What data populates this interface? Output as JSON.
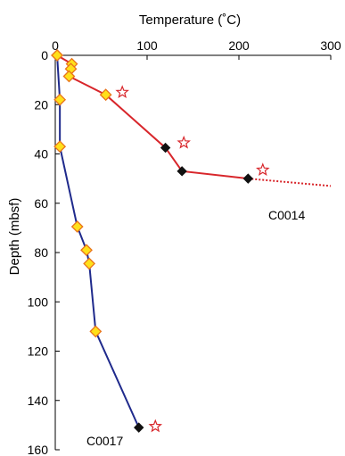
{
  "chart_data": {
    "type": "line",
    "title": "",
    "xlabel": "Temperature (˚C)",
    "ylabel": "Depth (mbsf)",
    "x_axis_position": "top",
    "y_axis_inverted": true,
    "xlim": [
      0,
      300
    ],
    "ylim": [
      0,
      160
    ],
    "xticks": [
      0,
      100,
      200,
      300
    ],
    "yticks": [
      0,
      20,
      40,
      60,
      80,
      100,
      120,
      140,
      160
    ],
    "grid": false,
    "legend": "none",
    "colors": {
      "C0014": "#d8262b",
      "C0017": "#1f2a8c",
      "marker_fill": "#ffe01a",
      "marker_edge": "#e8731a",
      "black_marker": "#111111",
      "star": "#d8262b"
    },
    "series": [
      {
        "name": "C0014",
        "points": [
          {
            "x": 2,
            "y": 0,
            "marker": "yellow-diamond"
          },
          {
            "x": 18,
            "y": 3.5,
            "marker": "yellow-diamond"
          },
          {
            "x": 17,
            "y": 5.5,
            "marker": "yellow-diamond"
          },
          {
            "x": 15,
            "y": 8.5,
            "marker": "yellow-diamond"
          },
          {
            "x": 55,
            "y": 16,
            "marker": "yellow-diamond"
          },
          {
            "x": 120,
            "y": 37.5,
            "marker": "black-diamond"
          },
          {
            "x": 138,
            "y": 47,
            "marker": "black-diamond"
          },
          {
            "x": 210,
            "y": 50,
            "marker": "black-diamond"
          }
        ],
        "extrapolation": {
          "style": "dashed",
          "to": {
            "x": 300,
            "y": 53
          }
        },
        "label": "C0014"
      },
      {
        "name": "C0017",
        "points": [
          {
            "x": 2,
            "y": 0,
            "marker": "yellow-diamond"
          },
          {
            "x": 5,
            "y": 18,
            "marker": "yellow-diamond"
          },
          {
            "x": 5,
            "y": 37,
            "marker": "yellow-diamond"
          },
          {
            "x": 24,
            "y": 69.5,
            "marker": "yellow-diamond"
          },
          {
            "x": 34,
            "y": 79,
            "marker": "yellow-diamond"
          },
          {
            "x": 37,
            "y": 84.5,
            "marker": "yellow-diamond"
          },
          {
            "x": 44,
            "y": 112,
            "marker": "yellow-diamond"
          },
          {
            "x": 91,
            "y": 151,
            "marker": "black-diamond"
          }
        ],
        "label": "C0017"
      }
    ],
    "stars": [
      {
        "x": 73,
        "y": 15
      },
      {
        "x": 140,
        "y": 35.5
      },
      {
        "x": 226,
        "y": 46.5
      },
      {
        "x": 109,
        "y": 150.5
      }
    ]
  }
}
